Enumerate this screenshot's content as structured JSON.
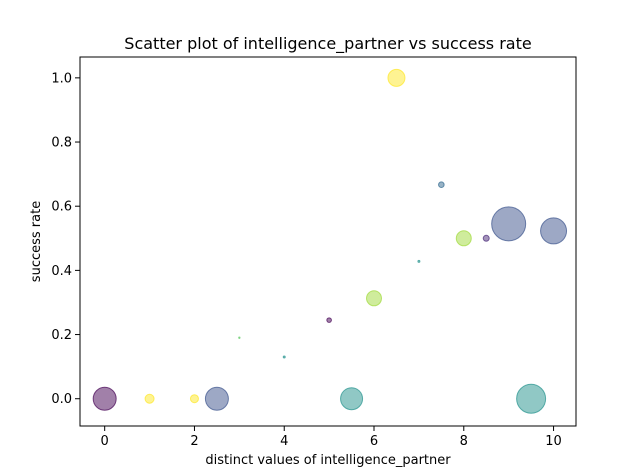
{
  "chart_data": {
    "type": "scatter",
    "title": "Scatter plot of intelligence_partner vs success rate",
    "xlabel": "distinct values of intelligence_partner",
    "ylabel": "success rate",
    "xlim": [
      -0.55,
      10.5
    ],
    "ylim": [
      -0.085,
      1.065
    ],
    "xticks": [
      0,
      2,
      4,
      6,
      8,
      10
    ],
    "yticks": [
      0.0,
      0.2,
      0.4,
      0.6,
      0.8,
      1.0
    ],
    "xtick_labels": [
      "0",
      "2",
      "4",
      "6",
      "8",
      "10"
    ],
    "ytick_labels": [
      "0.0",
      "0.2",
      "0.4",
      "0.6",
      "0.8",
      "1.0"
    ],
    "grid": false,
    "alpha": 0.5,
    "points": [
      {
        "x": 0,
        "y": 0.0,
        "size": 11.5,
        "color": "#440154"
      },
      {
        "x": 1,
        "y": 0.0,
        "size": 4.5,
        "color": "#fde725"
      },
      {
        "x": 2,
        "y": 0.0,
        "size": 4.0,
        "color": "#fde725"
      },
      {
        "x": 2.5,
        "y": 0.0,
        "size": 11.5,
        "color": "#3b528b"
      },
      {
        "x": 3,
        "y": 0.19,
        "size": 0.7,
        "color": "#5ec962"
      },
      {
        "x": 4,
        "y": 0.13,
        "size": 1.0,
        "color": "#21918c"
      },
      {
        "x": 5,
        "y": 0.245,
        "size": 2.3,
        "color": "#440154"
      },
      {
        "x": 5.5,
        "y": 0.0,
        "size": 11.0,
        "color": "#21918c"
      },
      {
        "x": 6,
        "y": 0.313,
        "size": 7.5,
        "color": "#a0da39"
      },
      {
        "x": 6.5,
        "y": 1.0,
        "size": 8.5,
        "color": "#fde725"
      },
      {
        "x": 7,
        "y": 0.428,
        "size": 1.0,
        "color": "#21918c"
      },
      {
        "x": 7.5,
        "y": 0.667,
        "size": 2.8,
        "color": "#31688e"
      },
      {
        "x": 8,
        "y": 0.5,
        "size": 7.5,
        "color": "#a0da39"
      },
      {
        "x": 8.5,
        "y": 0.5,
        "size": 3.0,
        "color": "#482878"
      },
      {
        "x": 9,
        "y": 0.545,
        "size": 17.0,
        "color": "#3b528b"
      },
      {
        "x": 9.5,
        "y": 0.0,
        "size": 14.5,
        "color": "#21918c"
      },
      {
        "x": 10,
        "y": 0.523,
        "size": 13.0,
        "color": "#3b528b"
      }
    ]
  }
}
